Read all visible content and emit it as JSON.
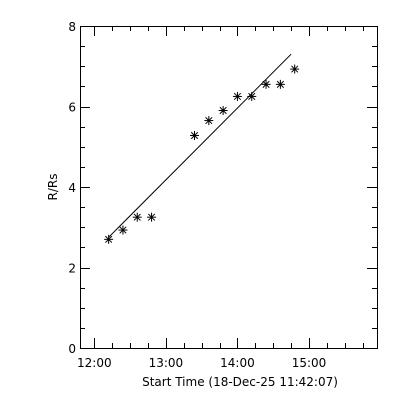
{
  "chart_data": {
    "type": "scatter",
    "xlabel": "Start Time (18-Dec-25 11:42:07)",
    "ylabel": "R/Rs",
    "x_tick_labels": [
      "12:00",
      "13:00",
      "14:00",
      "15:00"
    ],
    "y_tick_labels": [
      "0",
      "2",
      "4",
      "6",
      "8"
    ],
    "xlim": [
      "11:48",
      "15:57"
    ],
    "ylim": [
      0,
      8
    ],
    "x_major_ticks": [
      "12:00",
      "13:00",
      "14:00",
      "15:00"
    ],
    "x_minor_step_minutes": 15,
    "y_major_ticks": [
      0,
      2,
      4,
      6,
      8
    ],
    "y_minor_step": 0.5,
    "grid": false,
    "marker": "asterisk",
    "points": [
      {
        "x": "12:12",
        "y": 2.7
      },
      {
        "x": "12:24",
        "y": 2.93
      },
      {
        "x": "12:36",
        "y": 3.25
      },
      {
        "x": "12:48",
        "y": 3.25
      },
      {
        "x": "13:24",
        "y": 5.28
      },
      {
        "x": "13:36",
        "y": 5.65
      },
      {
        "x": "13:48",
        "y": 5.9
      },
      {
        "x": "14:00",
        "y": 6.25
      },
      {
        "x": "14:12",
        "y": 6.25
      },
      {
        "x": "14:24",
        "y": 6.55
      },
      {
        "x": "14:36",
        "y": 6.55
      },
      {
        "x": "14:48",
        "y": 6.93
      }
    ],
    "fit_line": [
      {
        "x": "12:12",
        "y": 2.75
      },
      {
        "x": "14:45",
        "y": 7.3
      }
    ]
  }
}
